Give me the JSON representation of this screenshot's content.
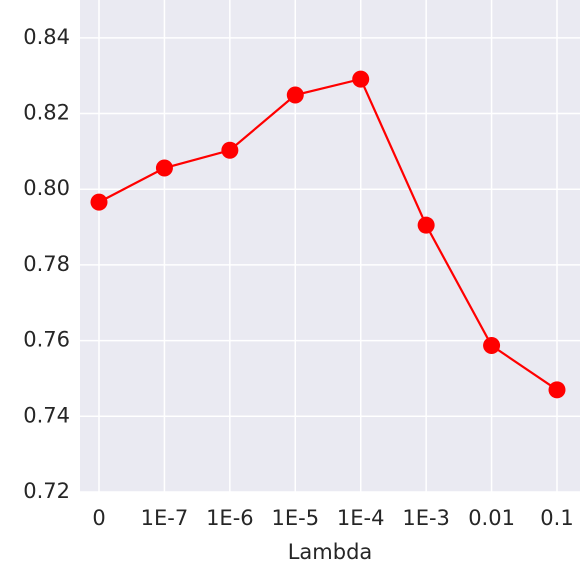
{
  "chart_data": {
    "type": "line",
    "x_label": "Lambda",
    "categories": [
      "0",
      "1E-7",
      "1E-6",
      "1E-5",
      "1E-4",
      "1E-3",
      "0.01",
      "0.1"
    ],
    "series": [
      {
        "color": "#ff0000",
        "values": [
          0.7966,
          0.8056,
          0.8103,
          0.8249,
          0.8291,
          0.7905,
          0.7587,
          0.747
        ]
      }
    ],
    "ylim": [
      0.72,
      0.85
    ],
    "yticks": [
      {
        "value": 0.72,
        "label": "0.72"
      },
      {
        "value": 0.74,
        "label": "0.74"
      },
      {
        "value": 0.76,
        "label": "0.76"
      },
      {
        "value": 0.78,
        "label": "0.78"
      },
      {
        "value": 0.8,
        "label": "0.80"
      },
      {
        "value": 0.82,
        "label": "0.82"
      },
      {
        "value": 0.84,
        "label": "0.84"
      }
    ],
    "grid": true
  }
}
